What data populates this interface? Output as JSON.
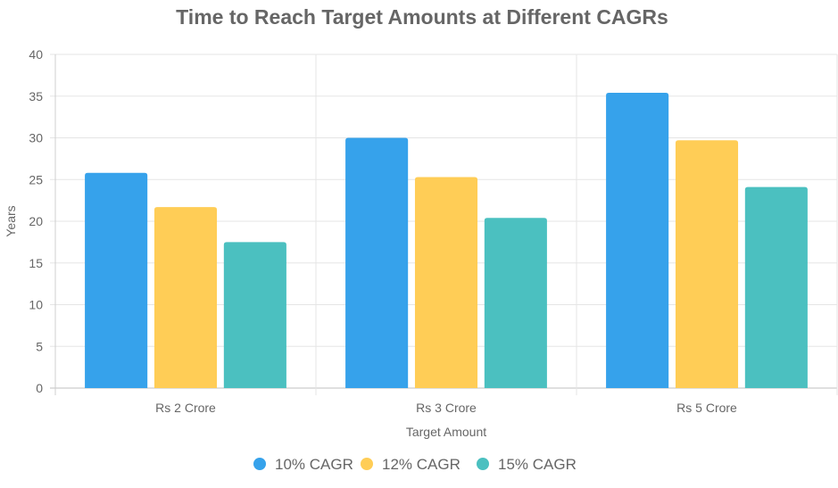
{
  "chart_data": {
    "type": "bar",
    "title": "Time to Reach Target Amounts at Different CAGRs",
    "xlabel": "Target Amount",
    "ylabel": "Years",
    "categories": [
      "Rs 2 Crore",
      "Rs 3 Crore",
      "Rs 5 Crore"
    ],
    "ylim": [
      0,
      40
    ],
    "yticks": [
      0,
      5,
      10,
      15,
      20,
      25,
      30,
      35,
      40
    ],
    "grid": true,
    "legend_position": "bottom",
    "series": [
      {
        "name": "10% CAGR",
        "color": "#36a2eb",
        "values": [
          25.8,
          30.0,
          35.4
        ]
      },
      {
        "name": "12% CAGR",
        "color": "#ffcd56",
        "values": [
          21.7,
          25.3,
          29.7
        ]
      },
      {
        "name": "15% CAGR",
        "color": "#4bc0c0",
        "values": [
          17.5,
          20.4,
          24.1
        ]
      }
    ]
  }
}
